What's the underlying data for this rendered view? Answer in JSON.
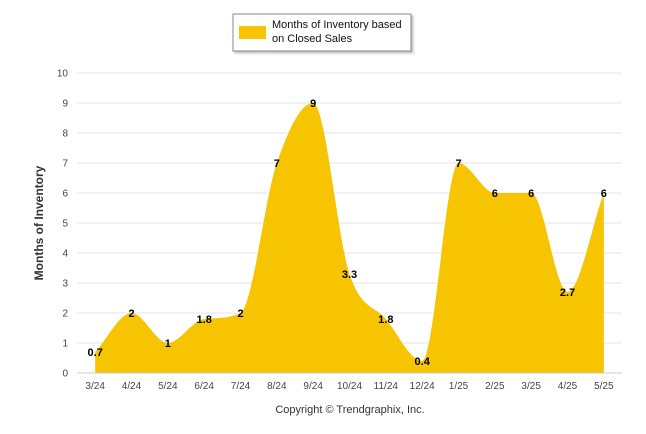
{
  "chart_data": {
    "type": "area",
    "categories": [
      "3/24",
      "4/24",
      "5/24",
      "6/24",
      "7/24",
      "8/24",
      "9/24",
      "10/24",
      "11/24",
      "12/24",
      "1/25",
      "2/25",
      "3/25",
      "4/25",
      "5/25"
    ],
    "series": [
      {
        "name_line1": "Months of Inventory based",
        "name_line2": "on Closed Sales",
        "values": [
          0.7,
          2,
          1,
          1.8,
          2,
          7,
          9,
          3.3,
          1.8,
          0.4,
          7,
          6,
          6,
          2.7,
          6
        ],
        "labels": [
          "0.7",
          "2",
          "1",
          "1.8",
          "2",
          "7",
          "9",
          "3.3",
          "1.8",
          "0.4",
          "7",
          "6",
          "6",
          "2.7",
          "6"
        ],
        "color": "#f6c400"
      }
    ],
    "xlabel": "",
    "ylabel": "Months of Inventory",
    "ylim": [
      0,
      10
    ],
    "yticks": [
      "0",
      "1",
      "2",
      "3",
      "4",
      "5",
      "6",
      "7",
      "8",
      "9",
      "10"
    ],
    "grid": true,
    "legend_position": "top-center"
  },
  "footer": {
    "copyright": "Copyright © Trendgraphix, Inc."
  }
}
